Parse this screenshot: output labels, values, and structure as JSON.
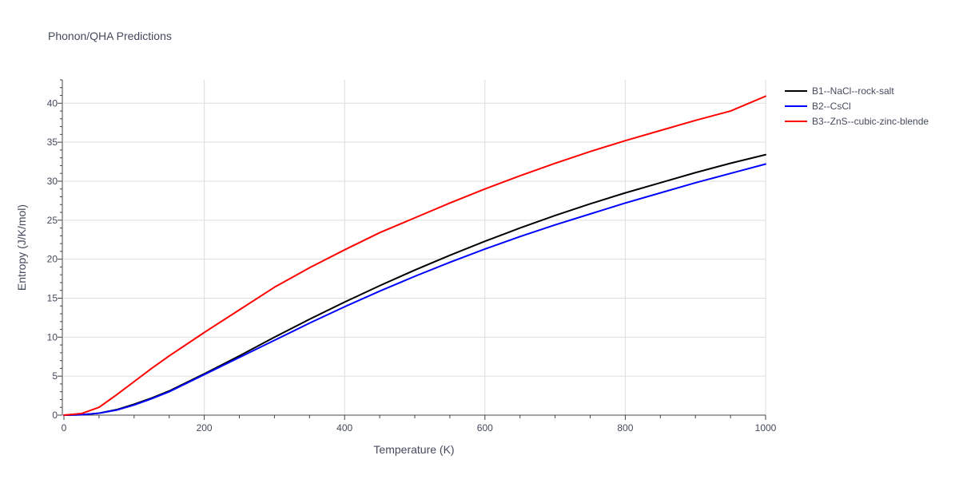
{
  "chart_data": {
    "type": "line",
    "title": "Phonon/QHA Predictions",
    "xlabel": "Temperature (K)",
    "ylabel": "Entropy (J/K/mol)",
    "xlim": [
      0,
      1000
    ],
    "ylim": [
      0,
      43
    ],
    "xticks": [
      0,
      200,
      400,
      600,
      800,
      1000
    ],
    "yticks": [
      0,
      5,
      10,
      15,
      20,
      25,
      30,
      35,
      40
    ],
    "grid": true,
    "legend_position": "top-right outside",
    "series": [
      {
        "name": "B1--NaCl--rock-salt",
        "color": "#000000",
        "x": [
          0,
          25,
          50,
          75,
          100,
          125,
          150,
          200,
          250,
          300,
          350,
          400,
          450,
          500,
          550,
          600,
          650,
          700,
          750,
          800,
          850,
          900,
          950,
          1000
        ],
        "y": [
          0,
          0.05,
          0.25,
          0.7,
          1.4,
          2.2,
          3.1,
          5.3,
          7.6,
          10.0,
          12.3,
          14.5,
          16.6,
          18.6,
          20.5,
          22.3,
          24.0,
          25.6,
          27.1,
          28.5,
          29.8,
          31.1,
          32.3,
          33.4
        ]
      },
      {
        "name": "B2--CsCl",
        "color": "#0000ff",
        "x": [
          0,
          25,
          50,
          75,
          100,
          125,
          150,
          200,
          250,
          300,
          350,
          400,
          450,
          500,
          550,
          600,
          650,
          700,
          750,
          800,
          850,
          900,
          950,
          1000
        ],
        "y": [
          0,
          0.05,
          0.25,
          0.65,
          1.3,
          2.1,
          3.0,
          5.2,
          7.4,
          9.6,
          11.8,
          13.9,
          15.9,
          17.8,
          19.6,
          21.3,
          22.9,
          24.4,
          25.8,
          27.2,
          28.5,
          29.8,
          31.0,
          32.2
        ]
      },
      {
        "name": "B3--ZnS--cubic-zinc-blende",
        "color": "#ff0000",
        "x": [
          0,
          25,
          50,
          75,
          100,
          125,
          150,
          200,
          250,
          300,
          350,
          400,
          450,
          500,
          550,
          600,
          650,
          700,
          750,
          800,
          850,
          900,
          950,
          1000
        ],
        "y": [
          0,
          0.2,
          1.0,
          2.6,
          4.3,
          6.0,
          7.6,
          10.6,
          13.5,
          16.4,
          18.9,
          21.2,
          23.4,
          25.3,
          27.2,
          29.0,
          30.7,
          32.3,
          33.8,
          35.2,
          36.5,
          37.8,
          39.0,
          40.9
        ]
      }
    ]
  }
}
